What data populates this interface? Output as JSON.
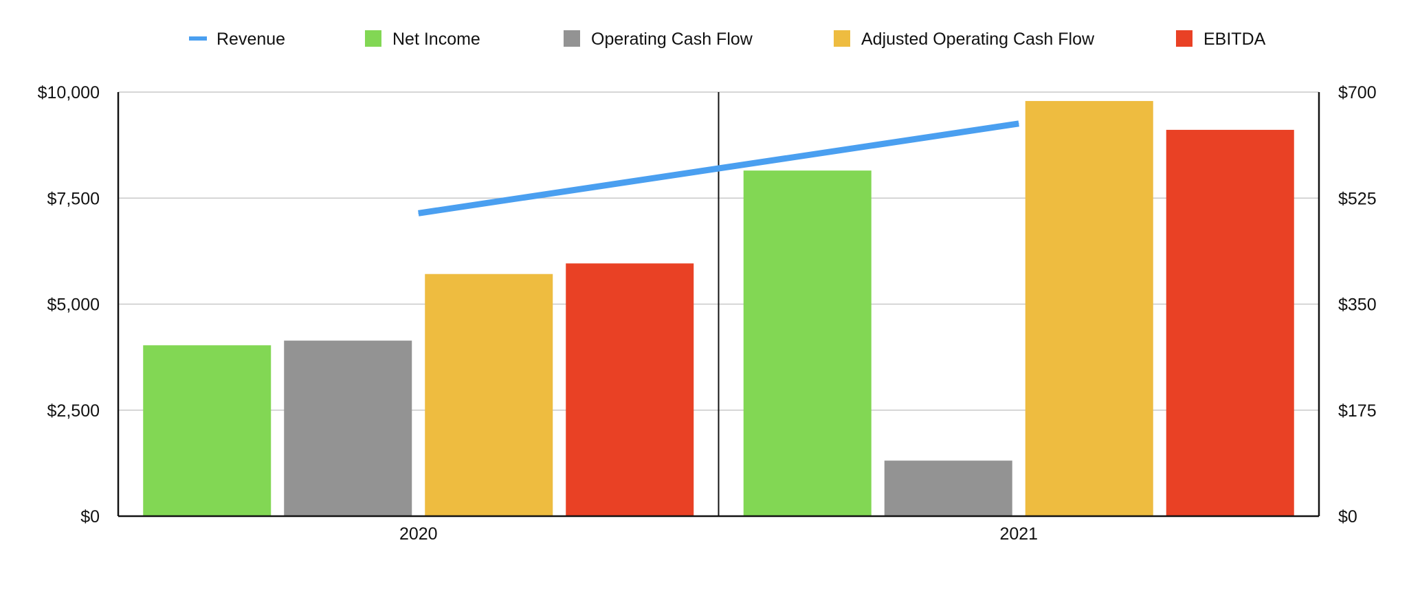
{
  "chart_data": {
    "type": "bar",
    "categories": [
      "2020",
      "2021"
    ],
    "series": [
      {
        "name": "Net Income",
        "values": [
          4030,
          8150
        ],
        "color": "#82d754",
        "axis": "left"
      },
      {
        "name": "Operating Cash Flow",
        "values": [
          4140,
          1310
        ],
        "color": "#939393",
        "axis": "left"
      },
      {
        "name": "Adjusted Operating Cash Flow",
        "values": [
          5710,
          9790
        ],
        "color": "#eebc40",
        "axis": "left"
      },
      {
        "name": "EBITDA",
        "values": [
          5960,
          9110
        ],
        "color": "#e94125",
        "axis": "left"
      }
    ],
    "line_series": [
      {
        "name": "Revenue",
        "values": [
          500,
          648
        ],
        "color": "#4a9ff0",
        "axis": "right"
      }
    ],
    "left_axis": {
      "ylim": [
        0,
        10000
      ],
      "ticks": [
        0,
        2500,
        5000,
        7500,
        10000
      ],
      "tick_labels": [
        "$0",
        "$2,500",
        "$5,000",
        "$7,500",
        "$10,000"
      ]
    },
    "right_axis": {
      "ylim": [
        0,
        700
      ],
      "ticks": [
        0,
        175,
        350,
        525,
        700
      ],
      "tick_labels": [
        "$0",
        "$175",
        "$350",
        "$525",
        "$700"
      ]
    },
    "legend": {
      "position": "top",
      "order": [
        "Revenue",
        "Net Income",
        "Operating Cash Flow",
        "Adjusted Operating Cash Flow",
        "EBITDA"
      ]
    },
    "grid": true,
    "title": "",
    "xlabel": "",
    "ylabel": ""
  }
}
